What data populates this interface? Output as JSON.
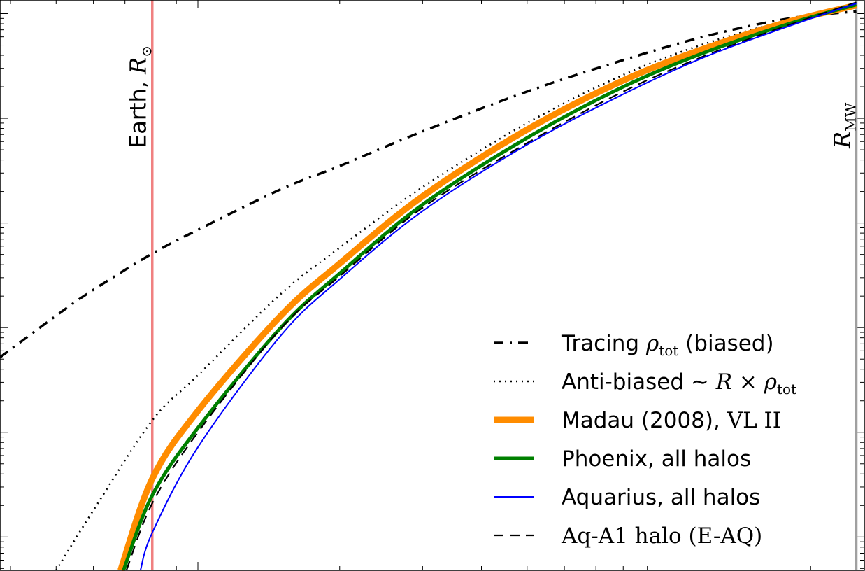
{
  "chart_data": {
    "type": "line",
    "title": "",
    "xlabel": "",
    "ylabel": "",
    "x_scale": "log",
    "y_scale": "log",
    "xlim": [
      3.8,
      260
    ],
    "ylim": [
      4.8e-06,
      1.35
    ],
    "grid": false,
    "legend_position": "lower-right",
    "vlines": [
      {
        "label_main": "Earth, ",
        "label_math": "R",
        "label_sub": "⊙",
        "x": 8.0,
        "color": "#f08080"
      },
      {
        "label_main": "",
        "label_math": "R",
        "label_sub": "MW",
        "x": 250,
        "color": "#a0a0a0"
      }
    ],
    "series": [
      {
        "name": "Tracing ρtot (biased)",
        "legend_main": "Tracing ",
        "legend_math": "ρ",
        "legend_sub": "tot",
        "legend_tail": " (biased)",
        "style": "dashdot",
        "color": "#000000",
        "x": [
          3.8,
          5,
          6,
          8,
          10,
          15,
          20,
          30,
          50,
          80,
          120,
          180,
          250
        ],
        "y": [
          0.00052,
          0.0013,
          0.0023,
          0.0051,
          0.0086,
          0.021,
          0.035,
          0.075,
          0.18,
          0.36,
          0.61,
          0.9,
          1.05
        ]
      },
      {
        "name": "Anti-biased ~ R × ρtot",
        "legend_main": "Anti-biased ",
        "legend_math": "∼ R × ρ",
        "legend_sub": "tot",
        "legend_tail": "",
        "style": "dotted",
        "color": "#000000",
        "x": [
          5,
          6,
          8,
          10,
          15,
          20,
          30,
          50,
          80,
          120,
          180,
          250
        ],
        "y": [
          4.8e-06,
          1.8e-05,
          0.00013,
          0.00035,
          0.0021,
          0.0058,
          0.022,
          0.09,
          0.26,
          0.52,
          0.87,
          1.2
        ]
      },
      {
        "name": "Madau (2008), VL II",
        "legend_main": "Madau (2008), ",
        "legend_math": "VL II",
        "legend_sub": "",
        "legend_tail": "",
        "style": "solid-thick",
        "color": "#ff8c00",
        "x": [
          6.85,
          8,
          10,
          15,
          20,
          30,
          50,
          80,
          120,
          180,
          250
        ],
        "y": [
          4.8e-06,
          3.6e-05,
          0.00016,
          0.0013,
          0.0041,
          0.018,
          0.078,
          0.23,
          0.47,
          0.84,
          1.2
        ]
      },
      {
        "name": "Phoenix, all halos",
        "legend_main": "Phoenix, all halos",
        "legend_math": "",
        "legend_sub": "",
        "legend_tail": "",
        "style": "solid",
        "color": "#008000",
        "x": [
          6.95,
          8,
          10,
          15,
          20,
          30,
          50,
          80,
          120,
          180,
          250
        ],
        "y": [
          4.8e-06,
          2.5e-05,
          0.00011,
          0.001,
          0.0033,
          0.015,
          0.065,
          0.2,
          0.43,
          0.8,
          1.22
        ]
      },
      {
        "name": "Aquarius, all halos",
        "legend_main": "Aquarius, all halos",
        "legend_math": "",
        "legend_sub": "",
        "legend_tail": "",
        "style": "solid-thin",
        "color": "#0000ff",
        "x": [
          7.55,
          8,
          10,
          15,
          20,
          30,
          50,
          80,
          120,
          180,
          250
        ],
        "y": [
          4.8e-06,
          1.1e-05,
          7.2e-05,
          0.00084,
          0.0029,
          0.013,
          0.056,
          0.17,
          0.39,
          0.76,
          1.25
        ]
      },
      {
        "name": "Aq-A1 halo (E-AQ)",
        "legend_main": "",
        "legend_math": "Aq-A1 halo (E-AQ)",
        "legend_sub": "",
        "legend_tail": "",
        "style": "dashed",
        "color": "#000000",
        "x": [
          7.05,
          8,
          10,
          15,
          20,
          30,
          50,
          80,
          120,
          180,
          250
        ],
        "y": [
          4.8e-06,
          2.1e-05,
          0.0001,
          0.00098,
          0.0031,
          0.014,
          0.058,
          0.18,
          0.4,
          0.78,
          1.28
        ]
      }
    ]
  }
}
